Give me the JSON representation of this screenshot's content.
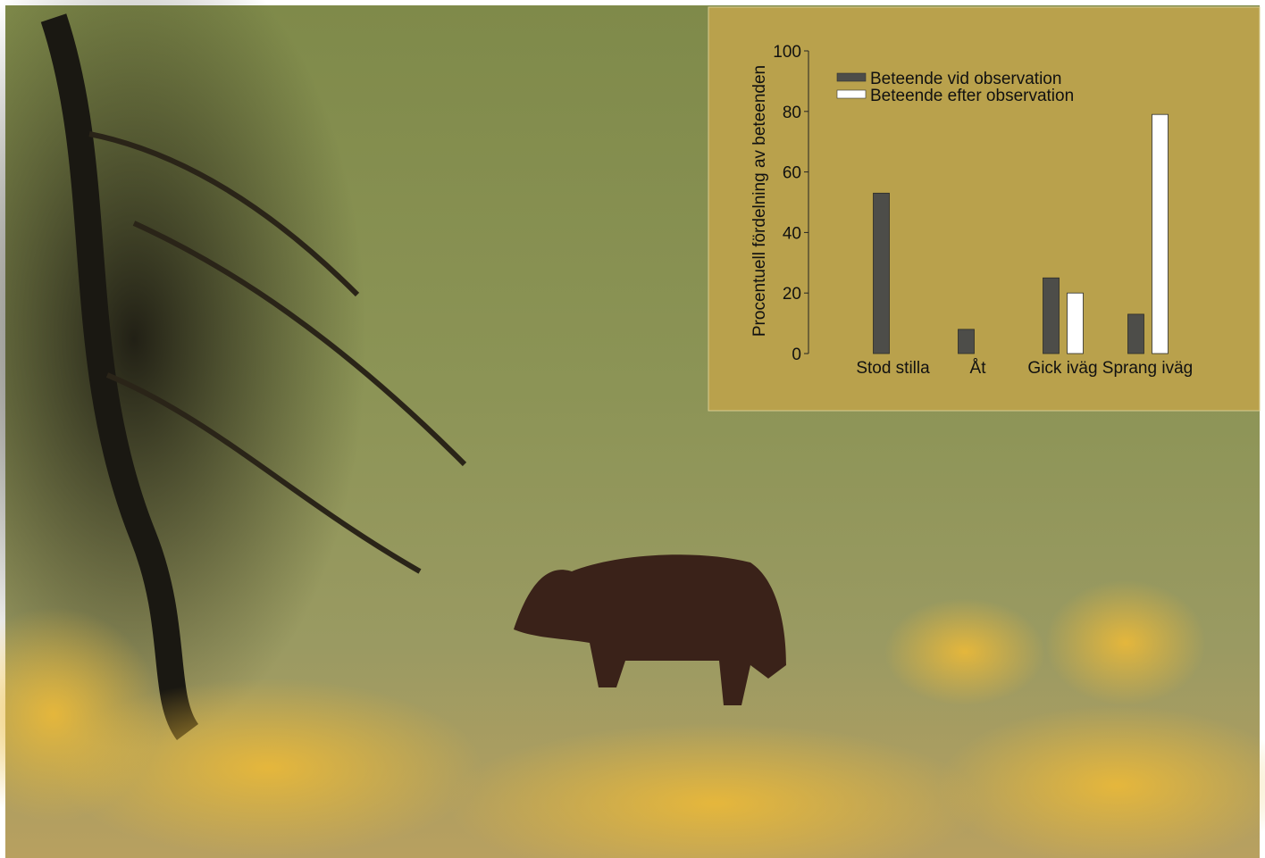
{
  "chart_data": {
    "type": "bar",
    "ylabel": "Procentuell fördelning av beteenden",
    "categories": [
      "Stod stilla",
      "Åt",
      "Gick iväg",
      "Sprang iväg"
    ],
    "series": [
      {
        "name": "Beteende vid observation",
        "color": "#4d4d49",
        "values": [
          53,
          8,
          25,
          13
        ]
      },
      {
        "name": "Beteende efter observation",
        "color": "#ffffff",
        "values": [
          0,
          0,
          20,
          79
        ]
      }
    ],
    "ylim": [
      0,
      100
    ],
    "yticks": [
      0,
      20,
      40,
      60,
      80,
      100
    ],
    "grid": false
  }
}
